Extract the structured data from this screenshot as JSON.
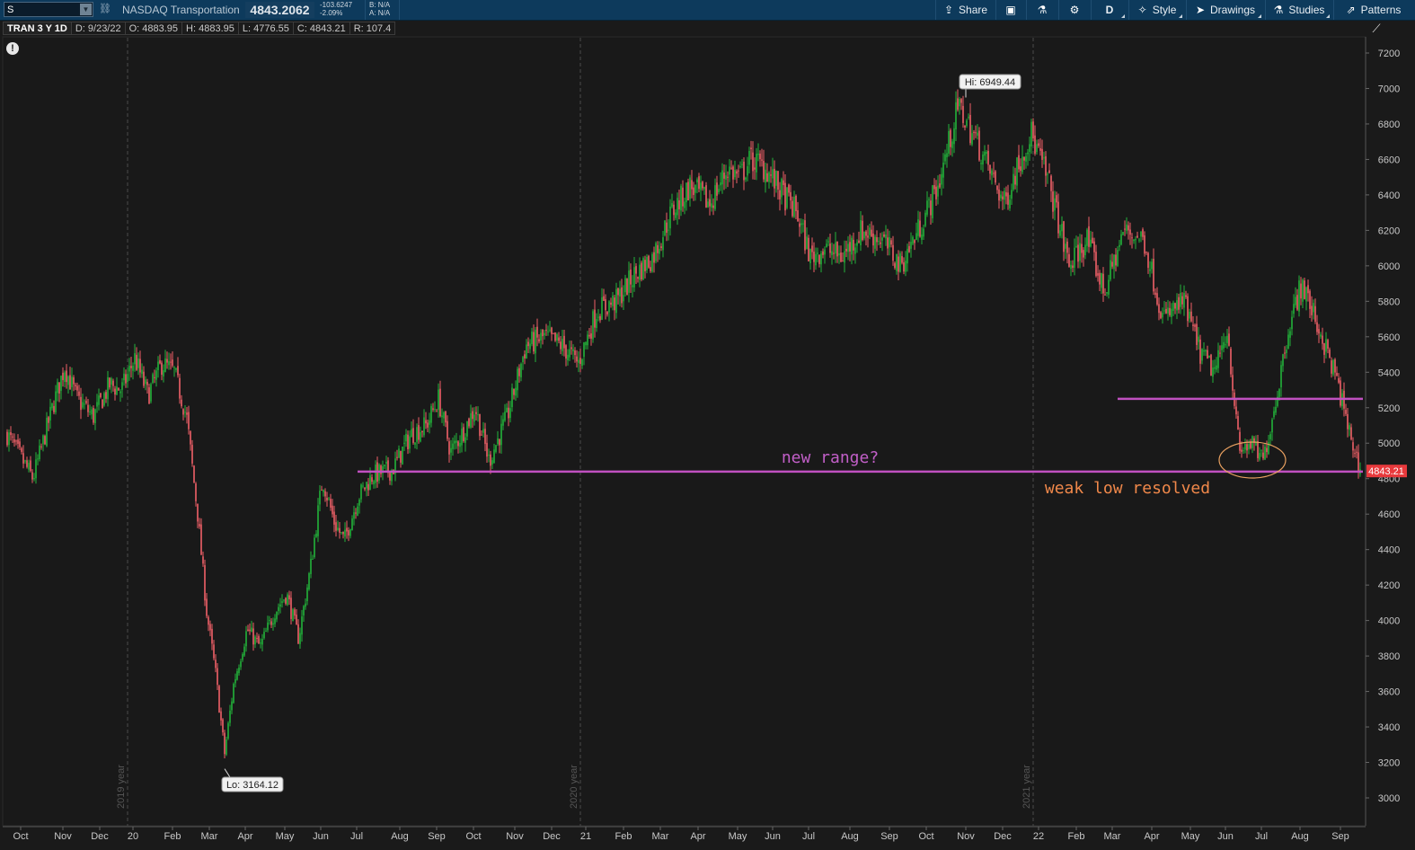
{
  "toolbar": {
    "symbol": "S",
    "instrument_name": "NASDAQ Transportation",
    "last_price": "4843.2062",
    "net_change": "-103.6247",
    "percent_change": "-2.09%",
    "bid": "B: N/A",
    "ask": "A: N/A",
    "share_label": "Share",
    "aggregation_label": "D",
    "style_label": "Style",
    "drawings_label": "Drawings",
    "studies_label": "Studies",
    "patterns_label": "Patterns",
    "icons": [
      "link-icon",
      "share-icon",
      "layout-icon",
      "flask-icon",
      "gear-icon",
      "style-icon",
      "cursor-icon",
      "studies-icon",
      "patterns-icon"
    ],
    "bg_color": "#0d3a5c"
  },
  "info_bar": {
    "title": "TRAN 3 Y 1D",
    "date": "D: 9/23/22",
    "open": "O: 4883.95",
    "high": "H: 4883.95",
    "low": "L: 4776.55",
    "close": "C: 4843.21",
    "range": "R: 107.4"
  },
  "chart_data": {
    "type": "candlestick",
    "ylim": [
      2900,
      7300
    ],
    "y_ticks": [
      3000,
      3200,
      3400,
      3600,
      3800,
      4000,
      4200,
      4400,
      4600,
      4800,
      5000,
      5200,
      5400,
      5600,
      5800,
      6000,
      6200,
      6400,
      6600,
      6800,
      7000,
      7200
    ],
    "x_ticks": [
      "Oct",
      "Nov",
      "Dec",
      "20",
      "Feb",
      "Mar",
      "Apr",
      "May",
      "Jun",
      "Jul",
      "Aug",
      "Sep",
      "Oct",
      "Nov",
      "Dec",
      "21",
      "Feb",
      "Mar",
      "Apr",
      "May",
      "Jun",
      "Jul",
      "Aug",
      "Sep",
      "Oct",
      "Nov",
      "Dec",
      "22",
      "Feb",
      "Mar",
      "Apr",
      "May",
      "Jun",
      "Jul",
      "Aug",
      "Sep"
    ],
    "year_dividers": [
      "2019 year",
      "2020 year",
      "2021 year"
    ],
    "price_path": [
      [
        "Oct",
        5050
      ],
      [
        "Oct",
        4800
      ],
      [
        "Nov",
        5200
      ],
      [
        "Nov",
        5430
      ],
      [
        "Nov",
        5250
      ],
      [
        "Dec",
        5150
      ],
      [
        "Dec",
        5330
      ],
      [
        "20",
        5300
      ],
      [
        "20",
        5480
      ],
      [
        "20",
        5270
      ],
      [
        "Feb",
        5450
      ],
      [
        "Feb",
        5400
      ],
      [
        "Feb",
        5150
      ],
      [
        "Mar",
        4600
      ],
      [
        "Mar",
        4050
      ],
      [
        "Mar",
        3700
      ],
      [
        "Mar",
        3250
      ],
      [
        "Apr",
        3650
      ],
      [
        "Apr",
        3950
      ],
      [
        "Apr",
        3850
      ],
      [
        "May",
        4050
      ],
      [
        "May",
        4150
      ],
      [
        "May",
        3900
      ],
      [
        "Jun",
        4300
      ],
      [
        "Jun",
        4800
      ],
      [
        "Jun",
        4550
      ],
      [
        "Jul",
        4450
      ],
      [
        "Jul",
        4700
      ],
      [
        "Jul",
        4820
      ],
      [
        "Aug",
        4850
      ],
      [
        "Aug",
        5050
      ],
      [
        "Sep",
        5100
      ],
      [
        "Sep",
        5250
      ],
      [
        "Sep",
        4950
      ],
      [
        "Oct",
        5050
      ],
      [
        "Oct",
        5200
      ],
      [
        "Oct",
        4900
      ],
      [
        "Nov",
        5150
      ],
      [
        "Nov",
        5550
      ],
      [
        "Dec",
        5600
      ],
      [
        "Dec",
        5550
      ],
      [
        "21",
        5450
      ],
      [
        "21",
        5750
      ],
      [
        "Feb",
        5800
      ],
      [
        "Feb",
        5950
      ],
      [
        "Mar",
        6050
      ],
      [
        "Mar",
        6300
      ],
      [
        "Apr",
        6450
      ],
      [
        "Apr",
        6350
      ],
      [
        "May",
        6550
      ],
      [
        "May",
        6500
      ],
      [
        "May",
        6600
      ],
      [
        "Jun",
        6550
      ],
      [
        "Jun",
        6400
      ],
      [
        "Jul",
        6300
      ],
      [
        "Jul",
        6050
      ],
      [
        "Jul",
        6100
      ],
      [
        "Aug",
        6050
      ],
      [
        "Aug",
        6200
      ],
      [
        "Sep",
        6150
      ],
      [
        "Sep",
        6000
      ],
      [
        "Oct",
        6200
      ],
      [
        "Oct",
        6450
      ],
      [
        "Nov",
        6900
      ],
      [
        "Nov",
        6700
      ],
      [
        "Dec",
        6500
      ],
      [
        "Dec",
        6350
      ],
      [
        "Dec",
        6550
      ],
      [
        "22",
        6750
      ],
      [
        "22",
        6450
      ],
      [
        "Feb",
        6000
      ],
      [
        "Feb",
        6150
      ],
      [
        "Mar",
        5850
      ],
      [
        "Mar",
        6200
      ],
      [
        "Apr",
        6150
      ],
      [
        "Apr",
        5700
      ],
      [
        "May",
        5800
      ],
      [
        "May",
        5500
      ],
      [
        "Jun",
        5400
      ],
      [
        "Jun",
        5650
      ],
      [
        "Jun",
        4950
      ],
      [
        "Jul",
        5000
      ],
      [
        "Jul",
        4900
      ],
      [
        "Jul",
        5250
      ],
      [
        "Aug",
        5650
      ],
      [
        "Aug",
        5900
      ],
      [
        "Aug",
        5700
      ],
      [
        "Sep",
        5400
      ],
      [
        "Sep",
        5300
      ],
      [
        "Sep",
        5150
      ],
      [
        "Sep",
        4843
      ]
    ],
    "high_label": "Hi: 6949.44",
    "low_label": "Lo: 3164.12",
    "current_price_label": "4843.21",
    "annotations": [
      {
        "name": "range-top-line",
        "type": "hline",
        "y": 5250,
        "from": "Mar",
        "color": "#c050c0"
      },
      {
        "name": "range-bottom-line",
        "type": "hline",
        "y": 4840,
        "from": "Jul",
        "color": "#c050c0"
      },
      {
        "name": "new-range-label",
        "type": "text",
        "text": "new range?",
        "color": "#c25fc8"
      },
      {
        "name": "weak-low-label",
        "type": "text",
        "text": "weak low resolved",
        "color": "#f0884a"
      },
      {
        "name": "weak-low-ellipse",
        "type": "ellipse",
        "color": "#e8a060"
      }
    ],
    "colors": {
      "up": "#22b43a",
      "down": "#f06068",
      "background": "#1a1a1a",
      "axis_text": "#c8c8c8",
      "current_price_bg": "#e8393c"
    }
  }
}
